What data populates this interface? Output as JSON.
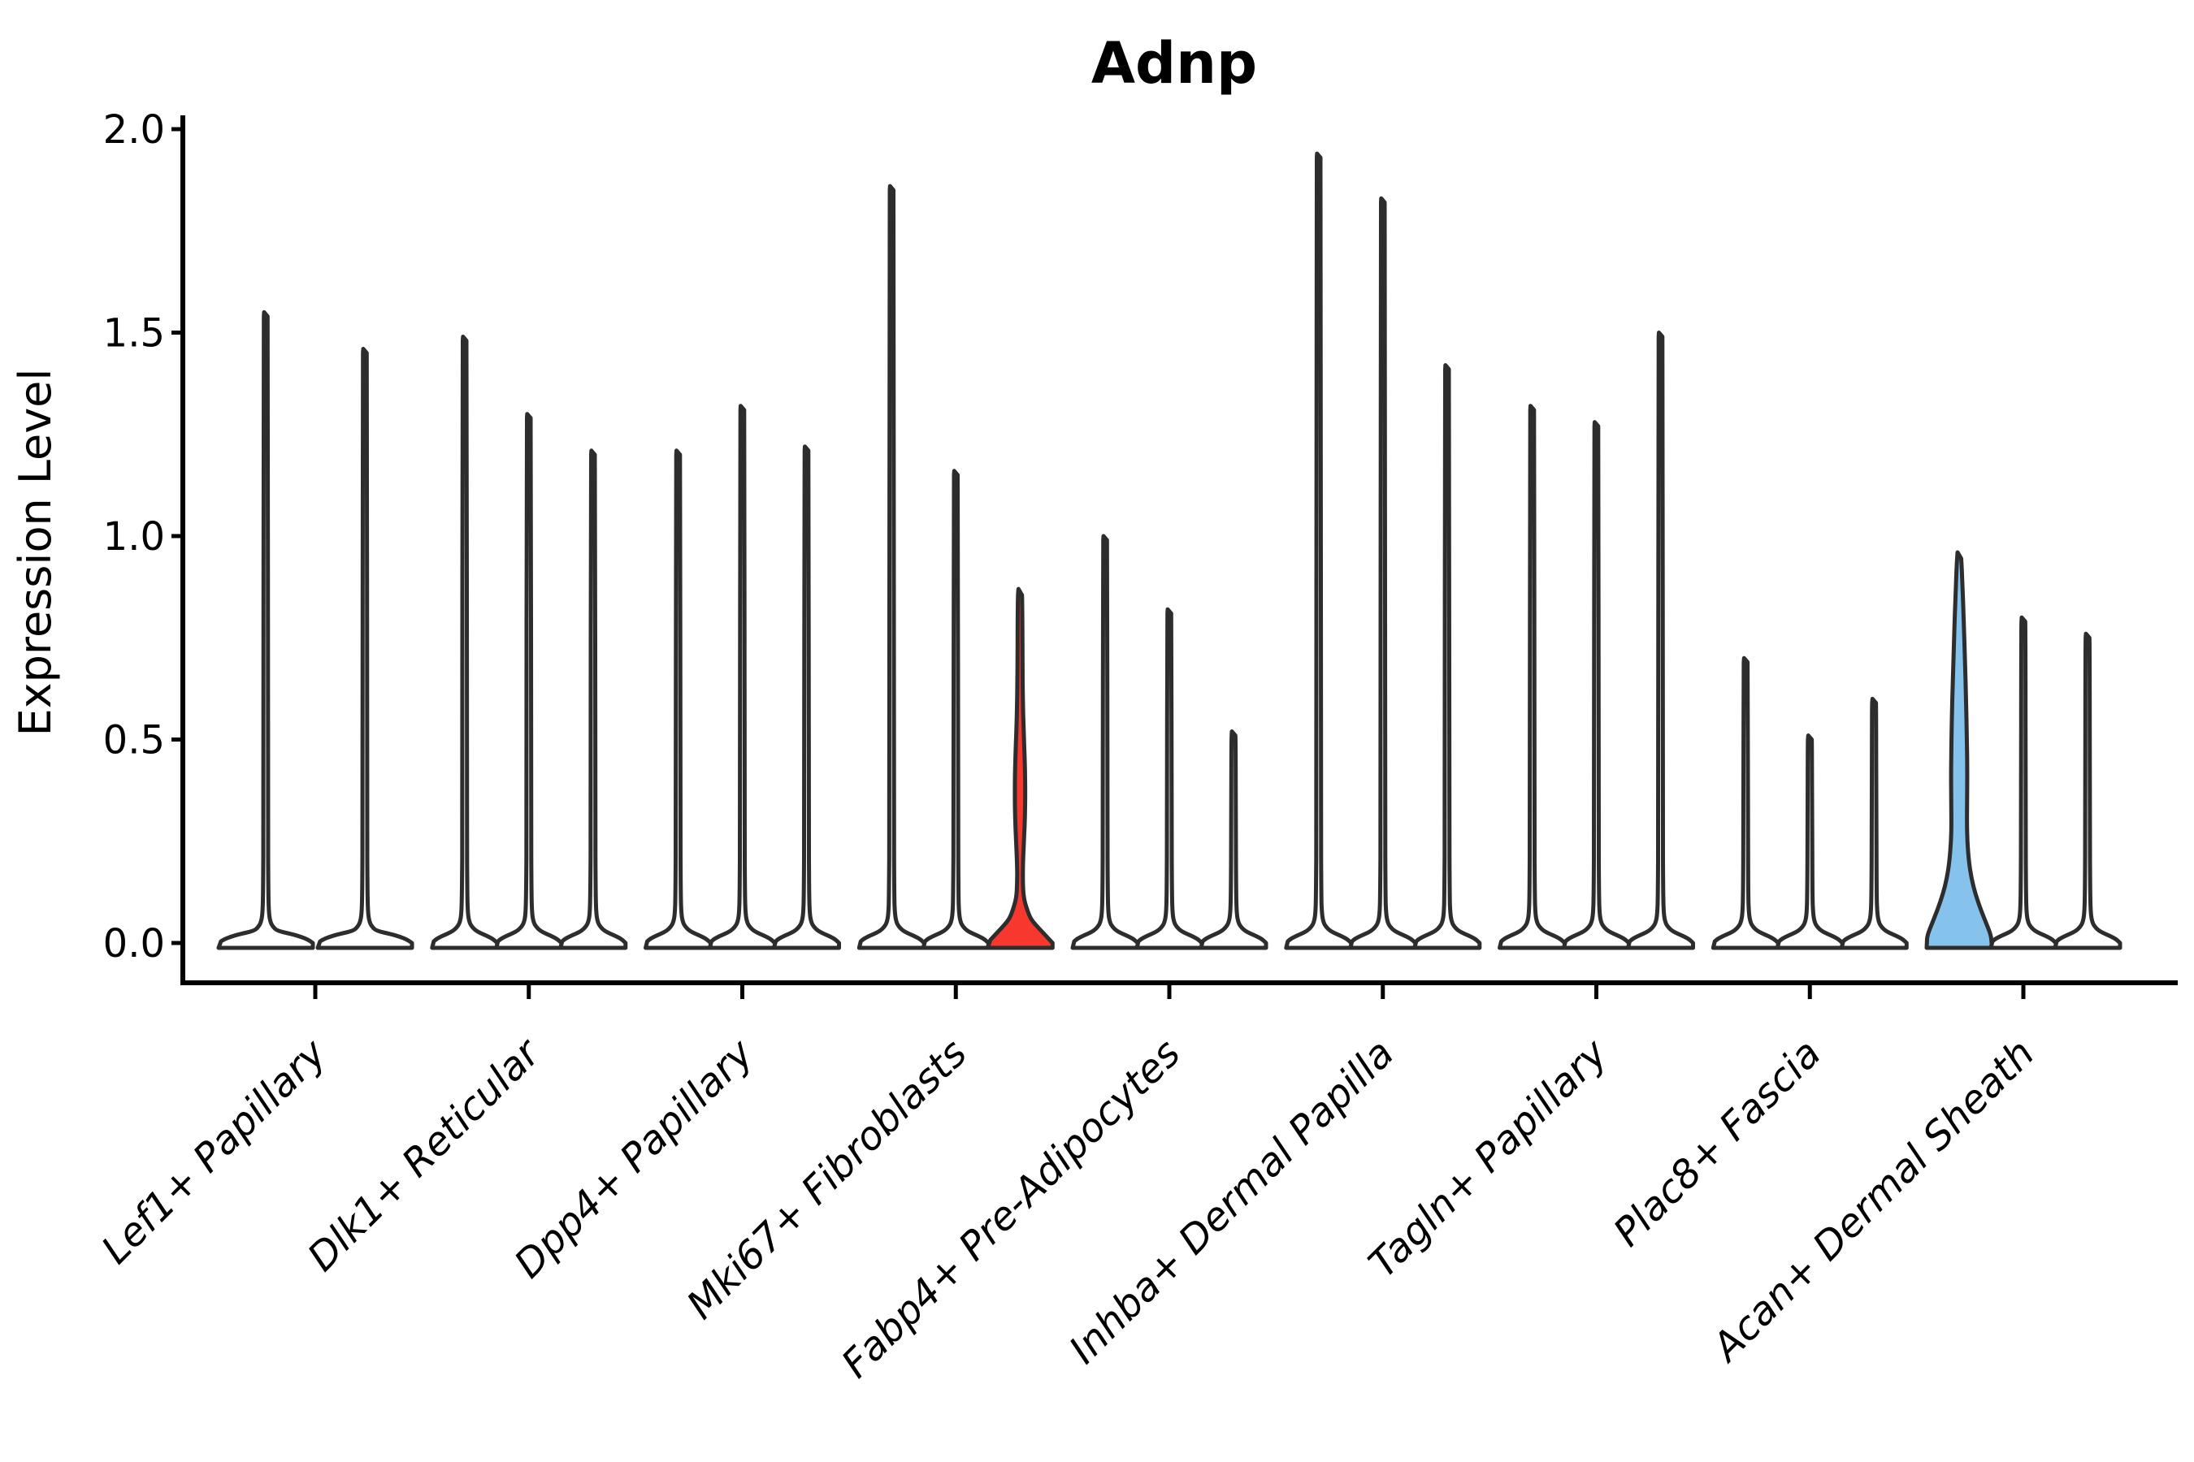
{
  "title": "Adnp",
  "y_axis": {
    "label": "Expression Level",
    "tick_labels": [
      "2.0",
      "1.5",
      "1.0",
      "0.5",
      "0.0"
    ]
  },
  "colors": {
    "background": "#FFFFFF",
    "axis": "#000000",
    "violin_outline": "#2D2D2D",
    "violin_default_fill": "#FFFFFF",
    "highlight_red": "#F8382F",
    "highlight_blue": "#85C2EC"
  },
  "chart_data": {
    "type": "violin",
    "title": "Adnp",
    "xlabel": "",
    "ylabel": "Expression Level",
    "ylim": [
      0,
      2
    ],
    "yticks": [
      2.0,
      1.5,
      1.0,
      0.5,
      0.0
    ],
    "ytick_labels": [
      "2.0",
      "1.5",
      "1.0",
      "0.5",
      "0.0"
    ],
    "grid": false,
    "legend_position": "none",
    "x_tick_rotation_deg": 45,
    "categories": [
      "Lef1+ Papillary",
      "Dlk1+ Reticular",
      "Dpp4+ Papillary",
      "Mki67+ Fibroblasts",
      "Fabp4+ Pre-Adipocytes",
      "Inhba+ Dermal Papilla",
      "Tagln+ Papillary",
      "Plac8+ Fascia",
      "Acan+ Dermal Sheath"
    ],
    "groups": [
      {
        "category": "Lef1+ Papillary",
        "violins": [
          {
            "peak_expression": 1.55,
            "shape": "spike",
            "fill": "#FFFFFF"
          },
          {
            "peak_expression": 1.46,
            "shape": "spike",
            "fill": "#FFFFFF"
          }
        ]
      },
      {
        "category": "Dlk1+ Reticular",
        "violins": [
          {
            "peak_expression": 1.49,
            "shape": "spike",
            "fill": "#FFFFFF"
          },
          {
            "peak_expression": 1.3,
            "shape": "spike",
            "fill": "#FFFFFF"
          },
          {
            "peak_expression": 1.21,
            "shape": "spike",
            "fill": "#FFFFFF"
          }
        ]
      },
      {
        "category": "Dpp4+ Papillary",
        "violins": [
          {
            "peak_expression": 1.21,
            "shape": "spike",
            "fill": "#FFFFFF"
          },
          {
            "peak_expression": 1.32,
            "shape": "spike",
            "fill": "#FFFFFF"
          },
          {
            "peak_expression": 1.22,
            "shape": "spike",
            "fill": "#FFFFFF"
          }
        ]
      },
      {
        "category": "Mki67+ Fibroblasts",
        "violins": [
          {
            "peak_expression": 1.86,
            "shape": "spike",
            "fill": "#FFFFFF"
          },
          {
            "peak_expression": 1.16,
            "shape": "spike",
            "fill": "#FFFFFF"
          },
          {
            "peak_expression": 0.87,
            "shape": "bulge",
            "fill": "#F8382F"
          }
        ]
      },
      {
        "category": "Fabp4+ Pre-Adipocytes",
        "violins": [
          {
            "peak_expression": 1.0,
            "shape": "spike",
            "fill": "#FFFFFF"
          },
          {
            "peak_expression": 0.82,
            "shape": "spike",
            "fill": "#FFFFFF"
          },
          {
            "peak_expression": 0.52,
            "shape": "spike",
            "fill": "#FFFFFF"
          }
        ]
      },
      {
        "category": "Inhba+ Dermal Papilla",
        "violins": [
          {
            "peak_expression": 1.94,
            "shape": "spike",
            "fill": "#FFFFFF"
          },
          {
            "peak_expression": 1.83,
            "shape": "spike",
            "fill": "#FFFFFF"
          },
          {
            "peak_expression": 1.42,
            "shape": "spike",
            "fill": "#FFFFFF"
          }
        ]
      },
      {
        "category": "Tagln+ Papillary",
        "violins": [
          {
            "peak_expression": 1.32,
            "shape": "spike",
            "fill": "#FFFFFF"
          },
          {
            "peak_expression": 1.28,
            "shape": "spike",
            "fill": "#FFFFFF"
          },
          {
            "peak_expression": 1.5,
            "shape": "spike",
            "fill": "#FFFFFF"
          }
        ]
      },
      {
        "category": "Plac8+ Fascia",
        "violins": [
          {
            "peak_expression": 0.7,
            "shape": "spike",
            "fill": "#FFFFFF"
          },
          {
            "peak_expression": 0.51,
            "shape": "spike",
            "fill": "#FFFFFF"
          },
          {
            "peak_expression": 0.6,
            "shape": "spike",
            "fill": "#FFFFFF"
          }
        ]
      },
      {
        "category": "Acan+ Dermal Sheath",
        "violins": [
          {
            "peak_expression": 0.96,
            "shape": "wide",
            "fill": "#85C2EC"
          },
          {
            "peak_expression": 0.8,
            "shape": "spike",
            "fill": "#FFFFFF"
          },
          {
            "peak_expression": 0.76,
            "shape": "spike",
            "fill": "#FFFFFF"
          }
        ]
      }
    ]
  }
}
